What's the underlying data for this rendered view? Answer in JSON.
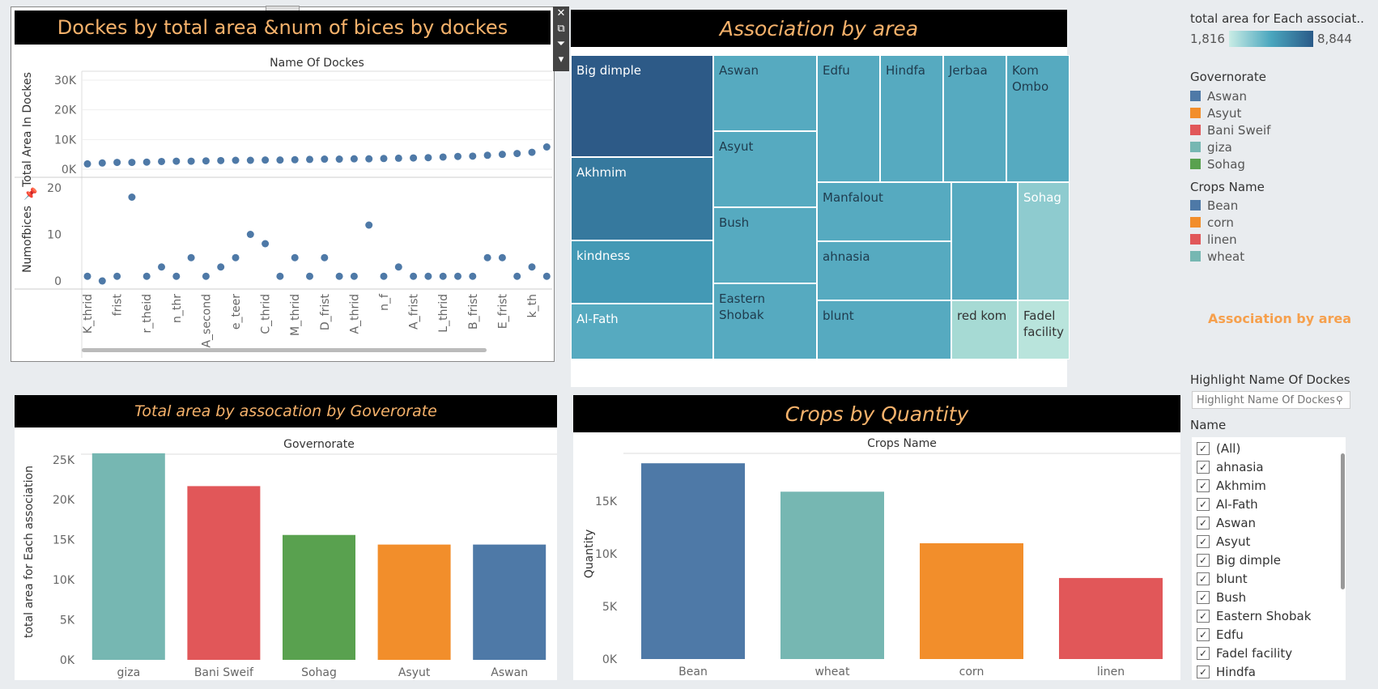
{
  "dock_panel": {
    "title": "Dockes by total area &num of bices by dockes",
    "column_header": "Name Of Dockes",
    "top_axis_label": "Total Area In Dockes",
    "bottom_axis_label": "Numofbices",
    "pin_icon": "pin-icon"
  },
  "treemap_panel": {
    "title": "Association by area"
  },
  "governorate_panel": {
    "title": "Total area by assocation by Goverorate",
    "column_header": "Governorate",
    "y_label": "total area for Each association"
  },
  "crops_panel": {
    "title": "Crops by Quantity",
    "column_header": "Crops Name",
    "y_label": "Quantity"
  },
  "legends": {
    "color_scale": {
      "title": "total area for Each associat..",
      "min": "1,816",
      "max": "8,844"
    },
    "governorate": {
      "title": "Governorate",
      "items": [
        {
          "label": "Aswan",
          "color": "#4e79a7"
        },
        {
          "label": "Asyut",
          "color": "#f28e2b"
        },
        {
          "label": "Bani Sweif",
          "color": "#e15759"
        },
        {
          "label": "giza",
          "color": "#76b7b2"
        },
        {
          "label": "Sohag",
          "color": "#59a14f"
        }
      ]
    },
    "crops": {
      "title": "Crops Name",
      "items": [
        {
          "label": "Bean",
          "color": "#4e79a7"
        },
        {
          "label": "corn",
          "color": "#f28e2b"
        },
        {
          "label": "linen",
          "color": "#e15759"
        },
        {
          "label": "wheat",
          "color": "#76b7b2"
        }
      ]
    },
    "association_link": "Association by area"
  },
  "highlight": {
    "title": "Highlight Name Of Dockes",
    "placeholder": "Highlight Name Of Dockes"
  },
  "name_filter": {
    "title": "Name",
    "items": [
      "(All)",
      "ahnasia",
      "Akhmim",
      "Al-Fath",
      "Aswan",
      "Asyut",
      "Big dimple",
      "blunt",
      "Bush",
      "Eastern Shobak",
      "Edfu",
      "Fadel facility",
      "Hindfa"
    ]
  },
  "chart_data": [
    {
      "type": "scatter",
      "x_labels": [
        "K_thrid",
        "frist",
        "r_theid",
        "n_thr",
        "A_second",
        "e_teer",
        "C_thrid",
        "M_thrid",
        "D_frist",
        "A_thrid",
        "n_f",
        "A_frist",
        "L_thrid",
        "B_frist",
        "E_frist",
        "k_th"
      ],
      "total_area": [
        1800,
        2100,
        2300,
        2300,
        2400,
        2600,
        2700,
        2700,
        2800,
        2900,
        3000,
        3000,
        3100,
        3100,
        3200,
        3300,
        3400,
        3400,
        3500,
        3500,
        3600,
        3700,
        3800,
        3900,
        4100,
        4300,
        4400,
        4700,
        5000,
        5300,
        5700,
        7500,
        8600
      ],
      "numofbices": [
        1,
        0,
        1,
        18,
        1,
        3,
        1,
        5,
        1,
        3,
        5,
        10,
        8,
        1,
        5,
        1,
        5,
        1,
        1,
        12,
        1,
        3,
        1,
        1,
        1,
        1,
        1,
        5,
        5,
        1,
        3,
        1,
        5
      ],
      "top_ylim": [
        0,
        30000
      ],
      "top_yticks": [
        "30K",
        "20K",
        "10K",
        "0K"
      ],
      "top_ytick_values": [
        30000,
        20000,
        10000,
        0
      ],
      "bottom_ylim": [
        0,
        20
      ],
      "bottom_yticks": [
        "20",
        "10",
        "0"
      ],
      "bottom_ytick_values": [
        20,
        10,
        0
      ]
    },
    {
      "type": "treemap",
      "cells": [
        {
          "label": "Big dimple",
          "value": 8844,
          "color": "#2d5a87"
        },
        {
          "label": "Akhmim",
          "value": 6500,
          "color": "#36799e"
        },
        {
          "label": "kindness",
          "value": 5200,
          "color": "#4399b5"
        },
        {
          "label": "Al-Fath",
          "value": 4400,
          "color": "#56aac0"
        },
        {
          "label": "Aswan",
          "value": 4700,
          "color": "#56aac0"
        },
        {
          "label": "Asyut",
          "value": 4700,
          "color": "#56aac0"
        },
        {
          "label": "Bush",
          "value": 4700,
          "color": "#56aac0"
        },
        {
          "label": "Eastern Shobak",
          "value": 4500,
          "color": "#56aac0"
        },
        {
          "label": "Edfu",
          "value": 3900,
          "color": "#56aac0"
        },
        {
          "label": "Hindfa",
          "value": 3900,
          "color": "#56aac0"
        },
        {
          "label": "Jerbaa",
          "value": 3900,
          "color": "#56aac0"
        },
        {
          "label": "Kom Ombo",
          "value": 3900,
          "color": "#56aac0"
        },
        {
          "label": "Manfalout",
          "value": 3000,
          "color": "#56aac0"
        },
        {
          "label": "ahnasia",
          "value": 3000,
          "color": "#56aac0"
        },
        {
          "label": "blunt",
          "value": 3000,
          "color": "#56aac0"
        },
        {
          "label": "",
          "value": 2800,
          "color": "#56aac0"
        },
        {
          "label": "Sohag",
          "value": 2600,
          "color": "#8ecbcf"
        },
        {
          "label": "red kom",
          "value": 2000,
          "color": "#a6dad4"
        },
        {
          "label": "Fadel facility",
          "value": 1816,
          "color": "#b9e4dc"
        }
      ]
    },
    {
      "type": "bar",
      "categories": [
        "giza",
        "Bani Sweif",
        "Sohag",
        "Asyut",
        "Aswan"
      ],
      "values": [
        25800,
        21700,
        15600,
        14400,
        14400
      ],
      "colors": [
        "#76b7b2",
        "#e15759",
        "#59a14f",
        "#f28e2b",
        "#4e79a7"
      ],
      "ylim": [
        0,
        27000
      ],
      "yticks": [
        "25K",
        "20K",
        "15K",
        "10K",
        "5K",
        "0K"
      ],
      "ytick_values": [
        25000,
        20000,
        15000,
        10000,
        5000,
        0
      ]
    },
    {
      "type": "bar",
      "categories": [
        "Bean",
        "wheat",
        "corn",
        "linen"
      ],
      "values": [
        18600,
        15900,
        11000,
        7700
      ],
      "colors": [
        "#4e79a7",
        "#76b7b2",
        "#f28e2b",
        "#e15759"
      ],
      "ylim": [
        0,
        20000
      ],
      "yticks": [
        "15K",
        "10K",
        "5K",
        "0K"
      ],
      "ytick_values": [
        15000,
        10000,
        5000,
        0
      ]
    }
  ]
}
